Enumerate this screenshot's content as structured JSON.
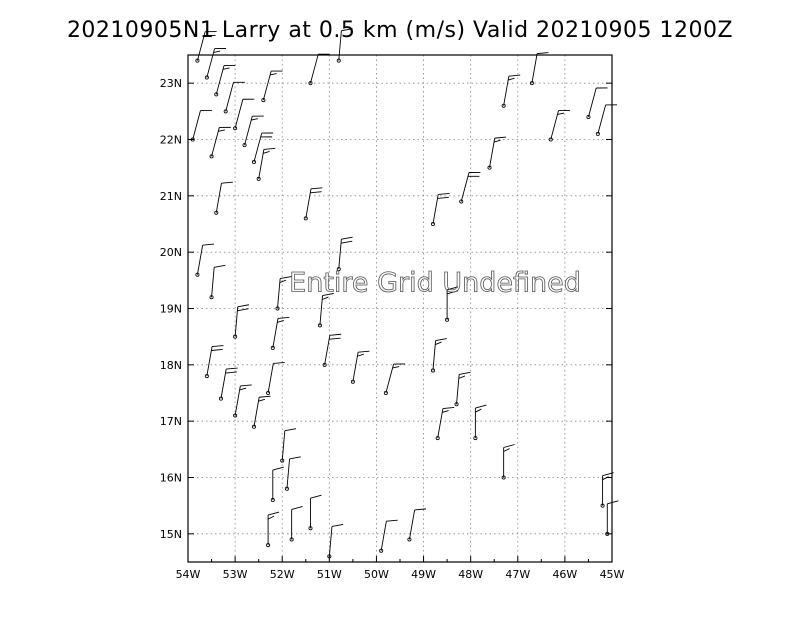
{
  "chart_data": {
    "type": "scatter",
    "title": "20210905N1 Larry at 0.5 km (m/s) Valid 20210905 1200Z",
    "message": "Entire Grid Undefined",
    "x_ticks": [
      "54W",
      "53W",
      "52W",
      "51W",
      "50W",
      "49W",
      "48W",
      "47W",
      "46W",
      "45W"
    ],
    "y_ticks": [
      "15N",
      "16N",
      "17N",
      "18N",
      "19N",
      "20N",
      "21N",
      "22N",
      "23N"
    ],
    "xlim": [
      -54,
      -45
    ],
    "ylim": [
      14.5,
      23.5
    ],
    "grid": true,
    "series": [
      {
        "points": [
          [
            -53.8,
            23.4,
            15,
            20
          ],
          [
            -53.6,
            23.1,
            15,
            15
          ],
          [
            -53.4,
            22.8,
            15,
            15
          ],
          [
            -53.2,
            22.5,
            15,
            10
          ],
          [
            -53.0,
            22.2,
            15,
            10
          ],
          [
            -52.8,
            21.9,
            15,
            15
          ],
          [
            -52.6,
            21.6,
            15,
            20
          ],
          [
            -53.9,
            22.0,
            15,
            10
          ],
          [
            -53.5,
            21.7,
            15,
            15
          ],
          [
            -52.4,
            22.7,
            15,
            15
          ],
          [
            -52.5,
            21.3,
            10,
            15
          ],
          [
            -53.4,
            20.7,
            10,
            10
          ],
          [
            -51.5,
            20.6,
            10,
            20
          ],
          [
            -51.4,
            23.0,
            15,
            10
          ],
          [
            -50.8,
            23.4,
            5,
            10
          ],
          [
            -48.8,
            20.5,
            10,
            20
          ],
          [
            -48.2,
            20.9,
            15,
            20
          ],
          [
            -47.6,
            21.5,
            10,
            15
          ],
          [
            -47.3,
            22.6,
            10,
            15
          ],
          [
            -46.7,
            23.0,
            10,
            10
          ],
          [
            -46.3,
            22.0,
            15,
            15
          ],
          [
            -45.5,
            22.4,
            15,
            10
          ],
          [
            -45.3,
            22.1,
            15,
            10
          ],
          [
            -50.8,
            19.7,
            5,
            20
          ],
          [
            -52.1,
            19.0,
            5,
            15
          ],
          [
            -51.2,
            18.7,
            5,
            15
          ],
          [
            -53.0,
            18.5,
            5,
            20
          ],
          [
            -52.2,
            18.3,
            10,
            15
          ],
          [
            -51.1,
            18.0,
            10,
            20
          ],
          [
            -50.5,
            17.7,
            10,
            15
          ],
          [
            -49.8,
            17.5,
            15,
            15
          ],
          [
            -48.5,
            18.8,
            0,
            20
          ],
          [
            -48.8,
            17.9,
            5,
            15
          ],
          [
            -48.3,
            17.3,
            5,
            15
          ],
          [
            -48.7,
            16.7,
            10,
            15
          ],
          [
            -47.9,
            16.7,
            0,
            15
          ],
          [
            -47.3,
            16.0,
            0,
            15
          ],
          [
            -53.6,
            17.8,
            10,
            20
          ],
          [
            -53.3,
            17.4,
            10,
            20
          ],
          [
            -53.0,
            17.1,
            10,
            15
          ],
          [
            -52.6,
            16.9,
            10,
            15
          ],
          [
            -52.3,
            17.5,
            10,
            10
          ],
          [
            -52.0,
            16.3,
            5,
            10
          ],
          [
            -51.9,
            15.8,
            5,
            10
          ],
          [
            -52.2,
            15.6,
            0,
            10
          ],
          [
            -51.4,
            15.1,
            0,
            10
          ],
          [
            -51.8,
            14.9,
            0,
            10
          ],
          [
            -52.3,
            14.8,
            0,
            15
          ],
          [
            -51.0,
            14.6,
            5,
            10
          ],
          [
            -49.9,
            14.7,
            10,
            10
          ],
          [
            -49.3,
            14.9,
            10,
            10
          ],
          [
            -45.2,
            15.5,
            0,
            15
          ],
          [
            -45.1,
            15.0,
            0,
            10
          ],
          [
            -53.8,
            19.6,
            10,
            10
          ],
          [
            -53.5,
            19.2,
            5,
            10
          ]
        ]
      }
    ]
  }
}
